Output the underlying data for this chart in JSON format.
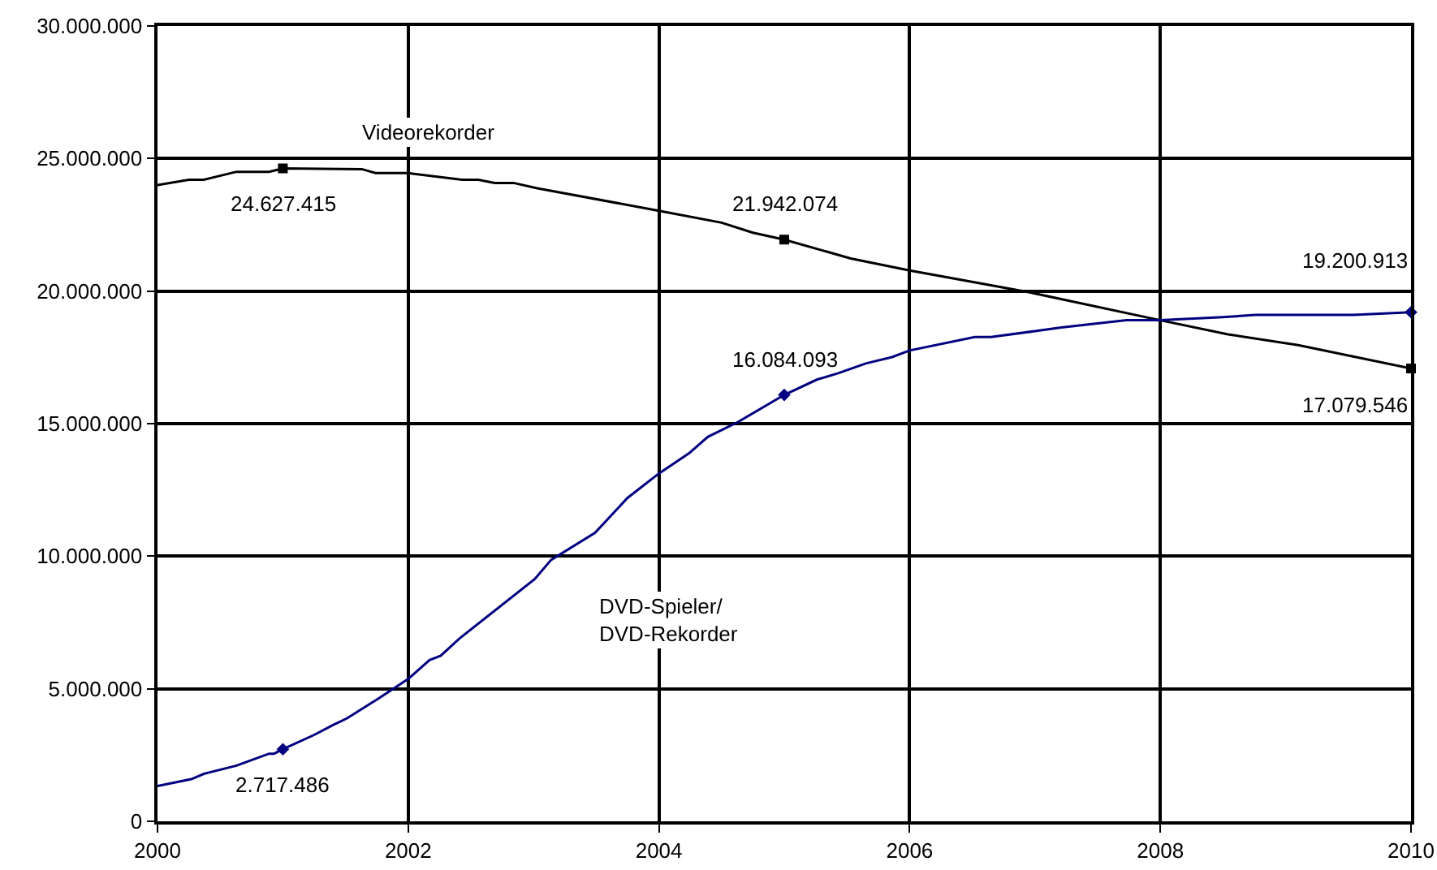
{
  "chart_data": {
    "type": "line",
    "xlim": [
      2000,
      2010
    ],
    "xticks": [
      2000,
      2002,
      2004,
      2006,
      2008,
      2010
    ],
    "ylim": [
      0,
      30000000
    ],
    "yticks": [
      0,
      {
        "value": 5000000,
        "label": "5.000.000"
      },
      {
        "value": 10000000,
        "label": "10.000.000"
      },
      {
        "value": 15000000,
        "label": "15.000.000"
      },
      {
        "value": 20000000,
        "label": "20.000.000"
      },
      {
        "value": 25000000,
        "label": "25.000.000"
      },
      {
        "value": 30000000,
        "label": "30.000.000"
      }
    ],
    "grid": true,
    "legend": false,
    "line_style": "solid",
    "series": [
      {
        "name": "Videorekorder",
        "color": "#000000",
        "x": [
          2000,
          2000.25,
          2000.37,
          2000.63,
          2000.89,
          2001,
          2001.63,
          2001.74,
          2002,
          2002.43,
          2002.56,
          2002.69,
          2002.84,
          2003.03,
          2004,
          2004.5,
          2004.75,
          2005,
          2005.53,
          2006,
          2006.95,
          2008,
          2008.54,
          2009.1,
          2010
        ],
        "values": [
          24000000,
          24200000,
          24200000,
          24500000,
          24500000,
          24627415,
          24600000,
          24450000,
          24450000,
          24200000,
          24200000,
          24080000,
          24080000,
          23880000,
          23030000,
          22580000,
          22200000,
          21942074,
          21230000,
          20780000,
          19960000,
          18900000,
          18370000,
          17960000,
          17079546
        ],
        "value_labels": [
          null,
          null,
          null,
          null,
          null,
          "24.627.415",
          null,
          null,
          null,
          null,
          null,
          null,
          null,
          null,
          null,
          null,
          null,
          "21.942.074",
          null,
          null,
          null,
          null,
          null,
          null,
          "17.079.546"
        ]
      },
      {
        "name": "DVD-Spieler/\nDVD-Rekorder",
        "color": "#000080",
        "x": [
          2000,
          2000.27,
          2000.37,
          2000.63,
          2000.89,
          2000.93,
          2001,
          2001.25,
          2001.4,
          2001.51,
          2001.77,
          2002,
          2002.17,
          2002.26,
          2002.41,
          2003.01,
          2003.14,
          2003.49,
          2003.75,
          2004,
          2004.24,
          2004.39,
          2004.63,
          2005,
          2005.26,
          2005.43,
          2005.65,
          2005.86,
          2006,
          2006.52,
          2006.65,
          2007,
          2007.21,
          2007.73,
          2008,
          2008.5,
          2008.76,
          2009.54,
          2010
        ],
        "values": [
          1330000,
          1590000,
          1790000,
          2100000,
          2550000,
          2550000,
          2717486,
          3260000,
          3630000,
          3880000,
          4650000,
          5370000,
          6080000,
          6250000,
          6900000,
          9140000,
          9860000,
          10880000,
          12200000,
          13120000,
          13880000,
          14500000,
          15060000,
          16084093,
          16660000,
          16900000,
          17270000,
          17510000,
          17760000,
          18270000,
          18270000,
          18490000,
          18630000,
          18900000,
          18900000,
          19020000,
          19100000,
          19100000,
          19200913
        ],
        "value_labels": [
          null,
          null,
          null,
          null,
          null,
          null,
          "2.717.486",
          null,
          null,
          null,
          null,
          null,
          null,
          null,
          null,
          null,
          null,
          null,
          null,
          null,
          null,
          null,
          null,
          "16.084.093",
          null,
          null,
          null,
          null,
          null,
          null,
          null,
          null,
          null,
          null,
          null,
          null,
          null,
          null,
          "19.200.913"
        ]
      }
    ]
  }
}
